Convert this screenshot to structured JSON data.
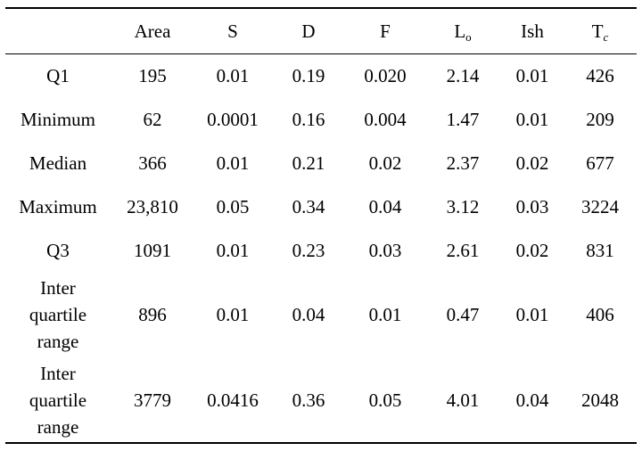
{
  "table": {
    "columns": [
      {
        "text": "",
        "sub": "",
        "sub_italic": false
      },
      {
        "text": "Area",
        "sub": "",
        "sub_italic": false
      },
      {
        "text": "S",
        "sub": "",
        "sub_italic": false
      },
      {
        "text": "D",
        "sub": "",
        "sub_italic": false
      },
      {
        "text": "F",
        "sub": "",
        "sub_italic": false
      },
      {
        "text": "L",
        "sub": "o",
        "sub_italic": false
      },
      {
        "text": "Ish",
        "sub": "",
        "sub_italic": false
      },
      {
        "text": "T",
        "sub": "c",
        "sub_italic": true
      }
    ],
    "rows": [
      {
        "label": [
          "Q1"
        ],
        "values": [
          "195",
          "0.01",
          "0.19",
          "0.020",
          "2.14",
          "0.01",
          "426"
        ]
      },
      {
        "label": [
          "Minimum"
        ],
        "values": [
          "62",
          "0.0001",
          "0.16",
          "0.004",
          "1.47",
          "0.01",
          "209"
        ]
      },
      {
        "label": [
          "Median"
        ],
        "values": [
          "366",
          "0.01",
          "0.21",
          "0.02",
          "2.37",
          "0.02",
          "677"
        ]
      },
      {
        "label": [
          "Maximum"
        ],
        "values": [
          "23,810",
          "0.05",
          "0.34",
          "0.04",
          "3.12",
          "0.03",
          "3224"
        ]
      },
      {
        "label": [
          "Q3"
        ],
        "values": [
          "1091",
          "0.01",
          "0.23",
          "0.03",
          "2.61",
          "0.02",
          "831"
        ]
      },
      {
        "label": [
          "Inter",
          "quartile",
          "range"
        ],
        "values": [
          "896",
          "0.01",
          "0.04",
          "0.01",
          "0.47",
          "0.01",
          "406"
        ]
      },
      {
        "label": [
          "Inter",
          "quartile",
          "range"
        ],
        "values": [
          "3779",
          "0.0416",
          "0.36",
          "0.05",
          "4.01",
          "0.04",
          "2048"
        ]
      }
    ]
  }
}
